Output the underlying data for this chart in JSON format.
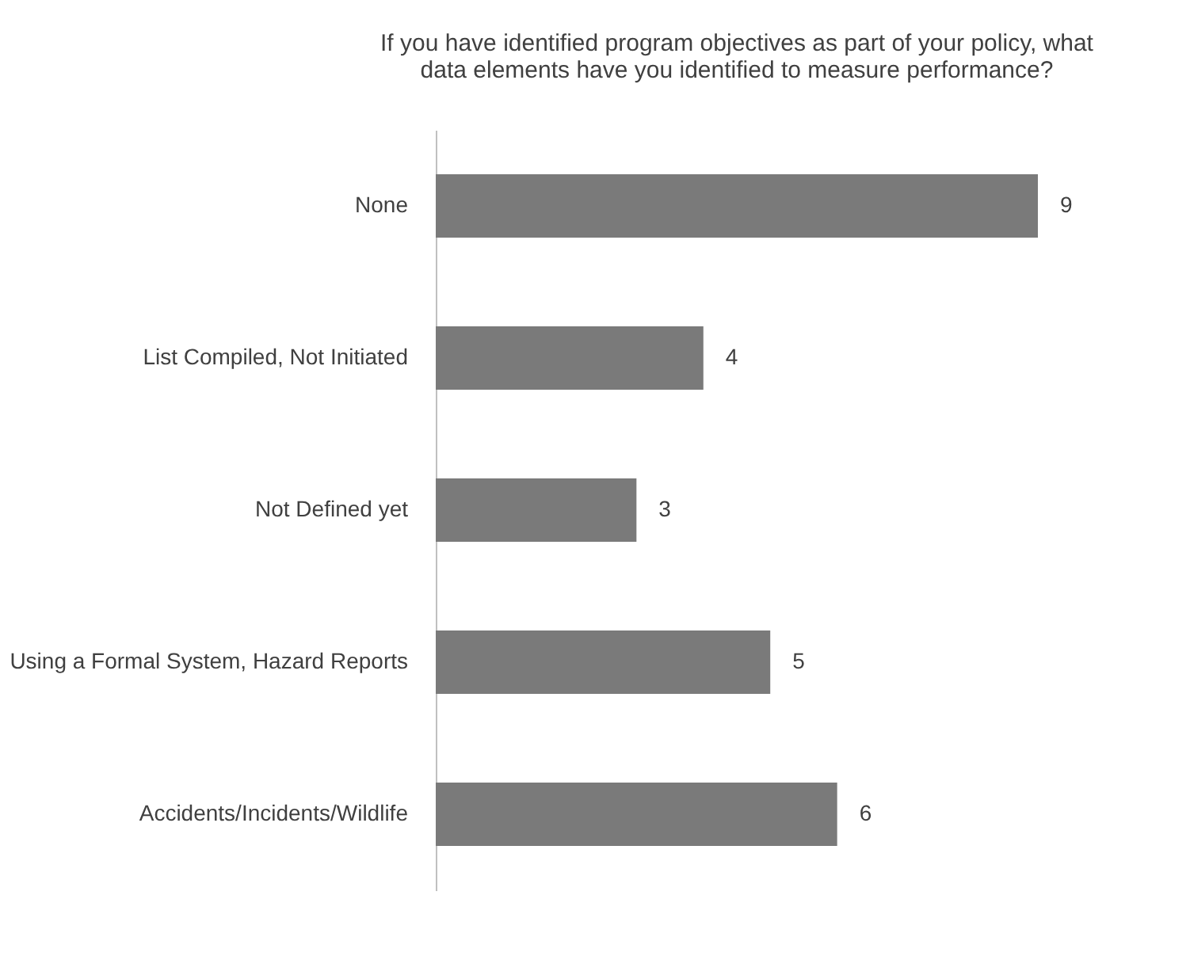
{
  "chart_data": {
    "type": "bar",
    "orientation": "horizontal",
    "title": "If you have identified program objectives as part of your policy, what data elements have you identified to measure performance?",
    "categories": [
      "None",
      "List Compiled, Not Initiated",
      "Not Defined yet",
      "Using a Formal System, Hazard Reports",
      "Accidents/Incidents/Wildlife"
    ],
    "values": [
      9,
      4,
      3,
      5,
      6
    ],
    "color": "#7a7a7a",
    "data_labels": true,
    "grid": false
  }
}
